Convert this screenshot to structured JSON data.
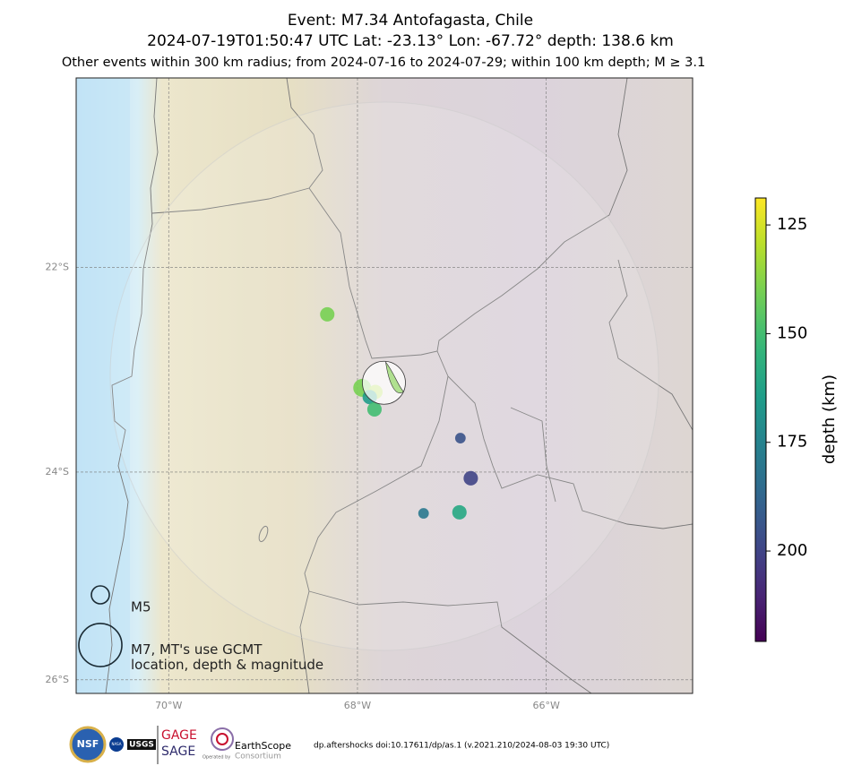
{
  "header": {
    "title": "Event: M7.34 Antofagasta, Chile",
    "subtitle": "2024-07-19T01:50:47 UTC Lat: -23.13° Lon: -67.72° depth: 138.6 km",
    "criteria": "Other events within 300 km radius; from 2024-07-16 to 2024-07-29; within 100 km depth; M ≥ 3.1"
  },
  "map": {
    "type": "scatter",
    "projection": "mercator",
    "grid": true,
    "xlim": [
      -70.98,
      -64.45
    ],
    "ylim": [
      -26.13,
      -20.12
    ],
    "xticks": [
      {
        "value": -70,
        "label": "70°W"
      },
      {
        "value": -68,
        "label": "68°W"
      },
      {
        "value": -66,
        "label": "66°W"
      }
    ],
    "yticks": [
      {
        "value": -22,
        "label": "22°S"
      },
      {
        "value": -24,
        "label": "24°S"
      },
      {
        "value": -26,
        "label": "26°S"
      }
    ],
    "mainshock": {
      "lon": -67.72,
      "lat": -23.13,
      "depth": 138.6,
      "mag": 7.34
    },
    "events": [
      {
        "lon": -68.32,
        "lat": -22.46,
        "depth": 140,
        "mag": 4.5
      },
      {
        "lon": -67.95,
        "lat": -23.18,
        "depth": 140,
        "mag": 5.0
      },
      {
        "lon": -67.81,
        "lat": -23.22,
        "depth": 132,
        "mag": 4.5
      },
      {
        "lon": -67.87,
        "lat": -23.27,
        "depth": 165,
        "mag": 4.5
      },
      {
        "lon": -67.82,
        "lat": -23.39,
        "depth": 150,
        "mag": 4.5
      },
      {
        "lon": -66.91,
        "lat": -23.67,
        "depth": 195,
        "mag": 3.8
      },
      {
        "lon": -66.8,
        "lat": -24.06,
        "depth": 200,
        "mag": 4.5
      },
      {
        "lon": -67.3,
        "lat": -24.4,
        "depth": 180,
        "mag": 3.8
      },
      {
        "lon": -66.92,
        "lat": -24.39,
        "depth": 160,
        "mag": 4.5
      }
    ],
    "legend": [
      {
        "mag": 5,
        "label": [
          "M5"
        ]
      },
      {
        "mag": 7,
        "label": [
          "M7, MT's use GCMT",
          "location, depth & magnitude"
        ]
      }
    ]
  },
  "colorbar": {
    "label": "depth (km)",
    "colormap": "viridis",
    "reversed": true,
    "range": [
      118.8,
      220.8
    ],
    "ticks": [
      125,
      150,
      175,
      200
    ]
  },
  "footer": {
    "logos": [
      "NSF",
      "NASA",
      "USGS",
      "GAGE",
      "SAGE",
      "EarthScope",
      "Consortium",
      "Operated by"
    ],
    "citation": "dp.aftershocks doi:10.17611/dp/as.1 (v.2021.210/2024-08-03 19:30 UTC)"
  }
}
